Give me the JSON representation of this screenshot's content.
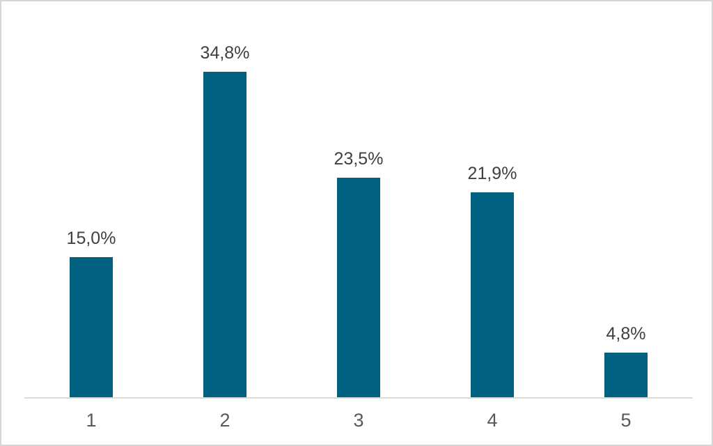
{
  "chart_data": {
    "type": "bar",
    "categories": [
      "1",
      "2",
      "3",
      "4",
      "5"
    ],
    "values": [
      15.0,
      34.8,
      23.5,
      21.9,
      4.8
    ],
    "value_labels": [
      "15,0%",
      "34,8%",
      "23,5%",
      "21,9%",
      "4,8%"
    ],
    "title": "",
    "xlabel": "",
    "ylabel": "",
    "ylim": [
      0,
      40
    ],
    "grid": false,
    "legend": "none",
    "decimal_separator": ",",
    "colors": {
      "bar": "#02617e",
      "value_label": "#404040",
      "tick_label": "#595959",
      "axis_line": "#d9d9d9",
      "frame_border": "#d6d6d6",
      "background": "#ffffff"
    }
  }
}
